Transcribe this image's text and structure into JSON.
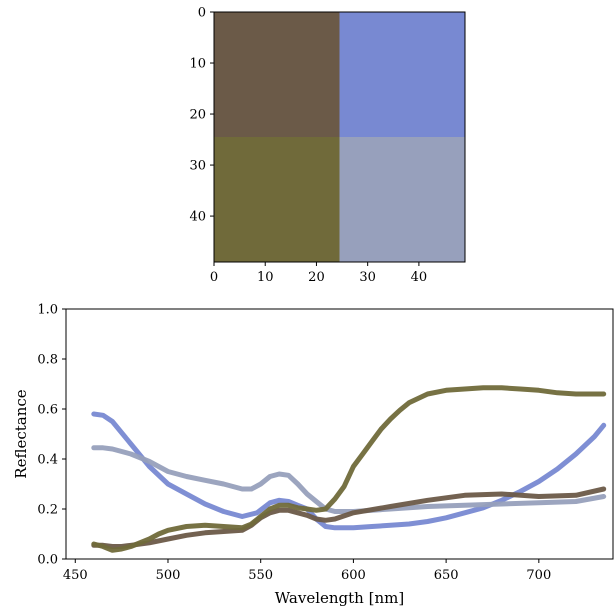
{
  "chart_data": [
    {
      "type": "heatmap",
      "description_of_content": "RGB image split into 4 quadrants",
      "xlim": [
        0,
        49
      ],
      "ylim": [
        49,
        0
      ],
      "xticks": [
        "0",
        "10",
        "20",
        "30",
        "40"
      ],
      "yticks": [
        "0",
        "10",
        "20",
        "30",
        "40"
      ],
      "quadrants": [
        {
          "x": [
            0,
            24.5
          ],
          "y": [
            0,
            24.5
          ],
          "color": "#6b5a48"
        },
        {
          "x": [
            24.5,
            49
          ],
          "y": [
            0,
            24.5
          ],
          "color": "#7889d2"
        },
        {
          "x": [
            0,
            24.5
          ],
          "y": [
            24.5,
            49
          ],
          "color": "#706a3a"
        },
        {
          "x": [
            24.5,
            49
          ],
          "y": [
            24.5,
            49
          ],
          "color": "#97a0bc"
        }
      ]
    },
    {
      "type": "line",
      "xlabel": "Wavelength [nm]",
      "ylabel": "Reflectance",
      "xlim": [
        445,
        740
      ],
      "ylim": [
        0.0,
        1.0
      ],
      "xticks": [
        "450",
        "500",
        "550",
        "600",
        "650",
        "700"
      ],
      "yticks": [
        "0.0",
        "0.2",
        "0.4",
        "0.6",
        "0.8",
        "1.0"
      ],
      "grid": false,
      "series": [
        {
          "color": "#7889d2",
          "x": [
            460,
            465,
            470,
            480,
            490,
            500,
            510,
            520,
            530,
            540,
            548,
            555,
            560,
            565,
            570,
            575,
            580,
            585,
            590,
            600,
            610,
            620,
            630,
            640,
            650,
            660,
            670,
            680,
            690,
            700,
            710,
            720,
            730,
            735
          ],
          "y": [
            0.58,
            0.575,
            0.55,
            0.46,
            0.37,
            0.3,
            0.26,
            0.22,
            0.19,
            0.17,
            0.185,
            0.225,
            0.235,
            0.23,
            0.215,
            0.2,
            0.16,
            0.13,
            0.125,
            0.125,
            0.13,
            0.135,
            0.14,
            0.15,
            0.165,
            0.185,
            0.205,
            0.235,
            0.27,
            0.31,
            0.36,
            0.42,
            0.49,
            0.535
          ]
        },
        {
          "color": "#97a0bc",
          "x": [
            460,
            465,
            470,
            480,
            490,
            500,
            510,
            520,
            530,
            540,
            545,
            550,
            555,
            560,
            565,
            570,
            575,
            580,
            585,
            590,
            600,
            620,
            640,
            660,
            680,
            700,
            720,
            735
          ],
          "y": [
            0.445,
            0.445,
            0.44,
            0.42,
            0.39,
            0.35,
            0.33,
            0.315,
            0.3,
            0.28,
            0.28,
            0.3,
            0.33,
            0.34,
            0.335,
            0.3,
            0.26,
            0.23,
            0.2,
            0.19,
            0.19,
            0.2,
            0.21,
            0.215,
            0.22,
            0.225,
            0.23,
            0.25
          ]
        },
        {
          "color": "#6b5a48",
          "x": [
            460,
            465,
            470,
            475,
            480,
            490,
            500,
            510,
            520,
            530,
            540,
            545,
            550,
            555,
            560,
            565,
            570,
            575,
            580,
            585,
            590,
            600,
            620,
            640,
            660,
            680,
            700,
            720,
            735
          ],
          "y": [
            0.055,
            0.055,
            0.05,
            0.05,
            0.055,
            0.065,
            0.08,
            0.095,
            0.105,
            0.11,
            0.115,
            0.135,
            0.165,
            0.185,
            0.195,
            0.195,
            0.185,
            0.175,
            0.16,
            0.155,
            0.16,
            0.185,
            0.21,
            0.235,
            0.255,
            0.26,
            0.25,
            0.255,
            0.28
          ]
        },
        {
          "color": "#706a3a",
          "x": [
            460,
            465,
            470,
            475,
            480,
            490,
            495,
            500,
            510,
            520,
            530,
            540,
            545,
            550,
            555,
            560,
            565,
            570,
            575,
            580,
            585,
            590,
            595,
            600,
            605,
            610,
            615,
            620,
            625,
            630,
            640,
            650,
            660,
            670,
            680,
            690,
            700,
            710,
            720,
            735
          ],
          "y": [
            0.06,
            0.05,
            0.035,
            0.04,
            0.05,
            0.08,
            0.1,
            0.115,
            0.13,
            0.135,
            0.13,
            0.125,
            0.14,
            0.17,
            0.2,
            0.215,
            0.215,
            0.205,
            0.2,
            0.195,
            0.2,
            0.24,
            0.29,
            0.37,
            0.42,
            0.47,
            0.52,
            0.56,
            0.595,
            0.625,
            0.66,
            0.675,
            0.68,
            0.685,
            0.685,
            0.68,
            0.675,
            0.665,
            0.66,
            0.66
          ]
        }
      ]
    }
  ]
}
